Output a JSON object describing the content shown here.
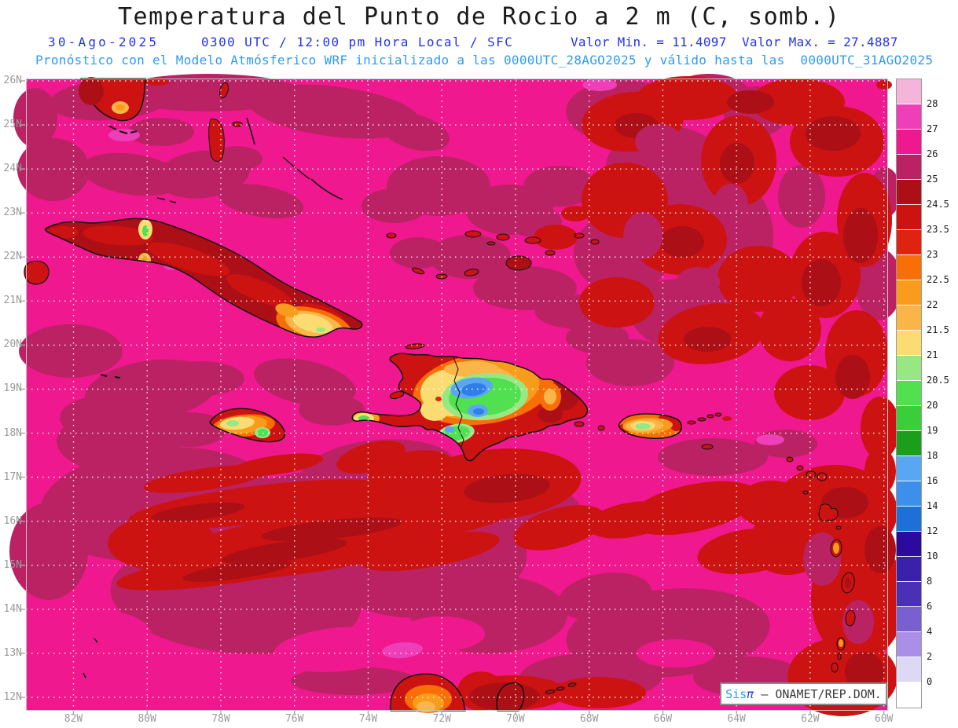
{
  "header": {
    "title": "Temperatura del Punto de Rocio a 2 m (C, somb.)",
    "date": "30-Ago-2025",
    "time_line": "0300 UTC / 12:00 pm Hora Local / SFC",
    "min_label": "Valor Min. = 11.4097",
    "max_label": "Valor Max. = 27.4887",
    "forecast_line": "Pronóstico con el Modelo Atmósferico WRF inicializado a las 0000UTC_28AGO2025 y válido hasta las  0000UTC_31AGO2025"
  },
  "map": {
    "lat_labels": [
      "26N",
      "25N",
      "24N",
      "23N",
      "22N",
      "21N",
      "20N",
      "19N",
      "18N",
      "17N",
      "16N",
      "15N",
      "14N",
      "13N",
      "12N"
    ],
    "lon_labels": [
      "82W",
      "80W",
      "78W",
      "76W",
      "74W",
      "72W",
      "70W",
      "68W",
      "66W",
      "64W",
      "62W",
      "60W"
    ]
  },
  "colorbar": {
    "tick_labels": [
      "28",
      "27",
      "26",
      "25",
      "24.5",
      "23.5",
      "23",
      "22.5",
      "22",
      "21.5",
      "21",
      "20.5",
      "20",
      "19",
      "18",
      "16",
      "14",
      "12",
      "10",
      "8",
      "6",
      "4",
      "2",
      "0"
    ],
    "cell_colors": [
      "#F5B5DB",
      "#EE3EB8",
      "#F0188E",
      "#BB2264",
      "#AC1016",
      "#CD1212",
      "#E02310",
      "#F86E07",
      "#F99C1B",
      "#FAB549",
      "#FBDC73",
      "#97E883",
      "#50E050",
      "#3BCE3B",
      "#1B9E1B",
      "#59A7F2",
      "#3D8FEC",
      "#1E6FD8",
      "#2B0B9E",
      "#3A21AC",
      "#4930B6",
      "#7A5FD0",
      "#A98FE8",
      "#DDD8F4",
      "#FFFFFF"
    ]
  },
  "watermark": {
    "brand": "Sis",
    "symbol": "π",
    "rest": " — ONAMET/REP.DOM."
  }
}
